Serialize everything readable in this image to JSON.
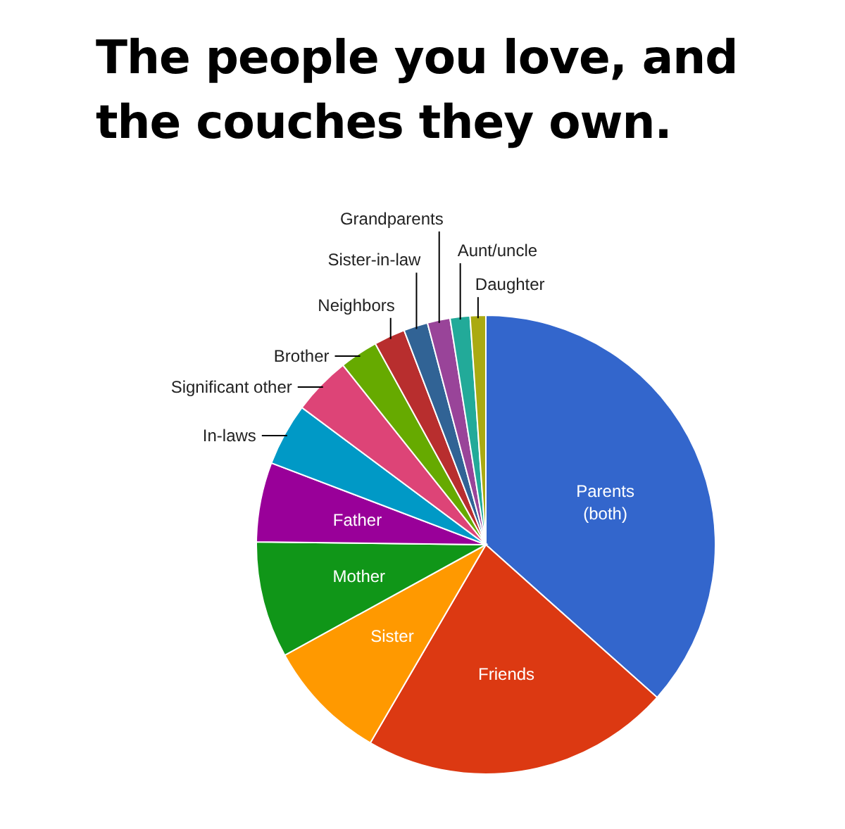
{
  "chart_data": {
    "type": "pie",
    "title": "The people you love, and the couches they own.",
    "categories": [
      "Parents (both)",
      "Friends",
      "Sister",
      "Mother",
      "Father",
      "In-laws",
      "Significant other",
      "Brother",
      "Neighbors",
      "Sister-in-law",
      "Grandparents",
      "Aunt/uncle",
      "Daughter"
    ],
    "values": [
      36.6,
      21.8,
      8.6,
      8.2,
      5.6,
      4.4,
      4.1,
      2.7,
      2.2,
      1.7,
      1.6,
      1.4,
      1.1
    ],
    "colors": [
      "#3366cc",
      "#dc3912",
      "#ff9900",
      "#109618",
      "#990099",
      "#0099c6",
      "#dd4477",
      "#66aa00",
      "#b82e2e",
      "#316395",
      "#994499",
      "#22aa99",
      "#aaaa11"
    ]
  }
}
